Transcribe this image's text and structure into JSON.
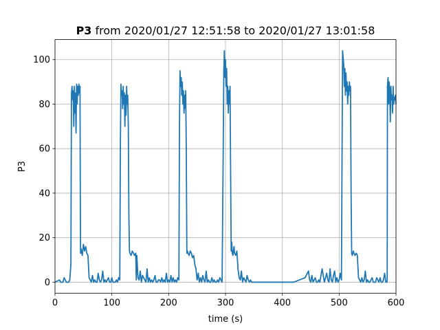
{
  "chart_data": {
    "type": "line",
    "title_bold": "P3",
    "title": " from 2020/01/27 12:51:58 to 2020/01/27 13:01:58",
    "xlabel": "time (s)",
    "ylabel": "P3",
    "xlim": [
      0,
      600
    ],
    "ylim": [
      -5,
      109
    ],
    "xticks": [
      0,
      100,
      200,
      300,
      400,
      500,
      600
    ],
    "yticks": [
      0,
      20,
      40,
      60,
      80,
      100
    ],
    "grid": true,
    "color": "#1f77b4",
    "series": [
      {
        "x": [
          0,
          8,
          10,
          14,
          16,
          20,
          24,
          26,
          28,
          28.5,
          29,
          30,
          31,
          32,
          33,
          34,
          35,
          36,
          37,
          38,
          39,
          40,
          41,
          42,
          43,
          44,
          44.5,
          45,
          46,
          48,
          50,
          52,
          54,
          56,
          58,
          60,
          62,
          64,
          66,
          68,
          70,
          72,
          74,
          76,
          78,
          80,
          82,
          84,
          86,
          88,
          90,
          92,
          94,
          96,
          98,
          100,
          102,
          104,
          106,
          108,
          110,
          112,
          114,
          115,
          116,
          117,
          118,
          119,
          120,
          121,
          122,
          123,
          124,
          125,
          126,
          127,
          128,
          129,
          130,
          131,
          132,
          134,
          136,
          138,
          140,
          142,
          143,
          144,
          146,
          148,
          150,
          152,
          154,
          156,
          158,
          160,
          162,
          164,
          166,
          168,
          170,
          172,
          174,
          176,
          178,
          180,
          182,
          184,
          186,
          188,
          190,
          192,
          194,
          196,
          198,
          200,
          202,
          204,
          206,
          208,
          210,
          212,
          214,
          216,
          218,
          219,
          220,
          221,
          222,
          223,
          224,
          225,
          226,
          227,
          228,
          229,
          230,
          231,
          232,
          233,
          234,
          236,
          238,
          240,
          242,
          244,
          246,
          248,
          250,
          252,
          254,
          256,
          258,
          260,
          262,
          264,
          266,
          268,
          270,
          272,
          274,
          276,
          278,
          280,
          282,
          284,
          286,
          288,
          290,
          292,
          294,
          296,
          297,
          298,
          299,
          300,
          301,
          302,
          303,
          304,
          305,
          306,
          307,
          308,
          309,
          310,
          311,
          312,
          313,
          314,
          315,
          316,
          318,
          320,
          322,
          324,
          326,
          328,
          330,
          332,
          334,
          336,
          338,
          340,
          342,
          344,
          346,
          348,
          350,
          360,
          380,
          400,
          420,
          440,
          446,
          448,
          450,
          452,
          454,
          456,
          458,
          460,
          462,
          464,
          466,
          470,
          474,
          478,
          480,
          482,
          484,
          486,
          488,
          490,
          492,
          494,
          496,
          498,
          500,
          502,
          504,
          506,
          508,
          509,
          510,
          511,
          512,
          513,
          514,
          515,
          516,
          517,
          518,
          519,
          520,
          521,
          522,
          523,
          524,
          525,
          526,
          528,
          530,
          532,
          534,
          536,
          538,
          540,
          542,
          544,
          546,
          548,
          550,
          552,
          554,
          556,
          558,
          560,
          562,
          564,
          566,
          568,
          570,
          572,
          574,
          576,
          578,
          580,
          582,
          584,
          584.5,
          585,
          586,
          587,
          588,
          589,
          590,
          591,
          592,
          593,
          594,
          595,
          596,
          597,
          598,
          599,
          600
        ],
        "y": [
          0,
          1,
          0,
          0,
          2,
          0,
          0,
          1,
          8,
          50,
          85,
          88,
          82,
          86,
          70,
          88,
          76,
          85,
          67,
          89,
          80,
          88,
          84,
          89,
          85,
          88,
          40,
          13,
          15,
          12,
          17,
          14,
          16,
          13,
          12,
          2,
          1,
          0,
          3,
          0,
          1,
          0,
          0,
          4,
          1,
          0,
          1,
          5,
          0,
          1,
          0,
          1,
          2,
          0,
          0,
          2,
          0,
          0,
          0,
          1,
          0,
          2,
          1,
          60,
          89,
          84,
          86,
          78,
          88,
          80,
          85,
          70,
          84,
          75,
          88,
          80,
          84,
          70,
          30,
          14,
          13,
          12,
          14,
          13,
          12,
          13,
          1,
          12,
          2,
          1,
          5,
          0,
          3,
          2,
          1,
          0,
          6,
          0,
          2,
          0,
          1,
          0,
          1,
          3,
          0,
          0,
          1,
          1,
          0,
          2,
          0,
          1,
          0,
          4,
          0,
          1,
          0,
          3,
          0,
          2,
          0,
          1,
          0,
          2,
          1,
          70,
          95,
          88,
          92,
          84,
          90,
          80,
          86,
          76,
          84,
          78,
          86,
          60,
          13,
          14,
          13,
          12,
          14,
          13,
          11,
          12,
          8,
          6,
          1,
          4,
          0,
          2,
          0,
          3,
          1,
          0,
          5,
          0,
          1,
          0,
          0,
          2,
          0,
          1,
          0,
          0,
          1,
          0,
          2,
          1,
          0,
          60,
          95,
          104,
          92,
          100,
          88,
          96,
          80,
          88,
          76,
          86,
          80,
          88,
          50,
          14,
          18,
          13,
          12,
          14,
          16,
          13,
          12,
          14,
          6,
          2,
          1,
          5,
          0,
          2,
          1,
          0,
          3,
          1,
          0,
          1,
          0,
          0,
          0,
          0,
          0,
          0,
          0,
          2,
          5,
          1,
          0,
          3,
          0,
          1,
          2,
          0,
          0,
          1,
          0,
          6,
          0,
          4,
          1,
          0,
          6,
          1,
          0,
          3,
          5,
          0,
          2,
          0,
          1,
          4,
          1,
          104,
          98,
          88,
          96,
          84,
          94,
          86,
          90,
          80,
          88,
          84,
          90,
          86,
          88,
          40,
          13,
          12,
          13,
          14,
          13,
          12,
          13,
          12,
          2,
          1,
          0,
          2,
          0,
          1,
          5,
          0,
          1,
          0,
          0,
          1,
          2,
          0,
          0,
          0,
          2,
          1,
          0,
          2,
          0,
          0,
          1,
          4,
          0,
          0,
          1,
          88,
          92,
          80,
          90,
          86,
          72,
          88,
          82,
          84,
          76,
          88,
          80,
          83,
          82,
          84,
          80
        ]
      }
    ]
  }
}
